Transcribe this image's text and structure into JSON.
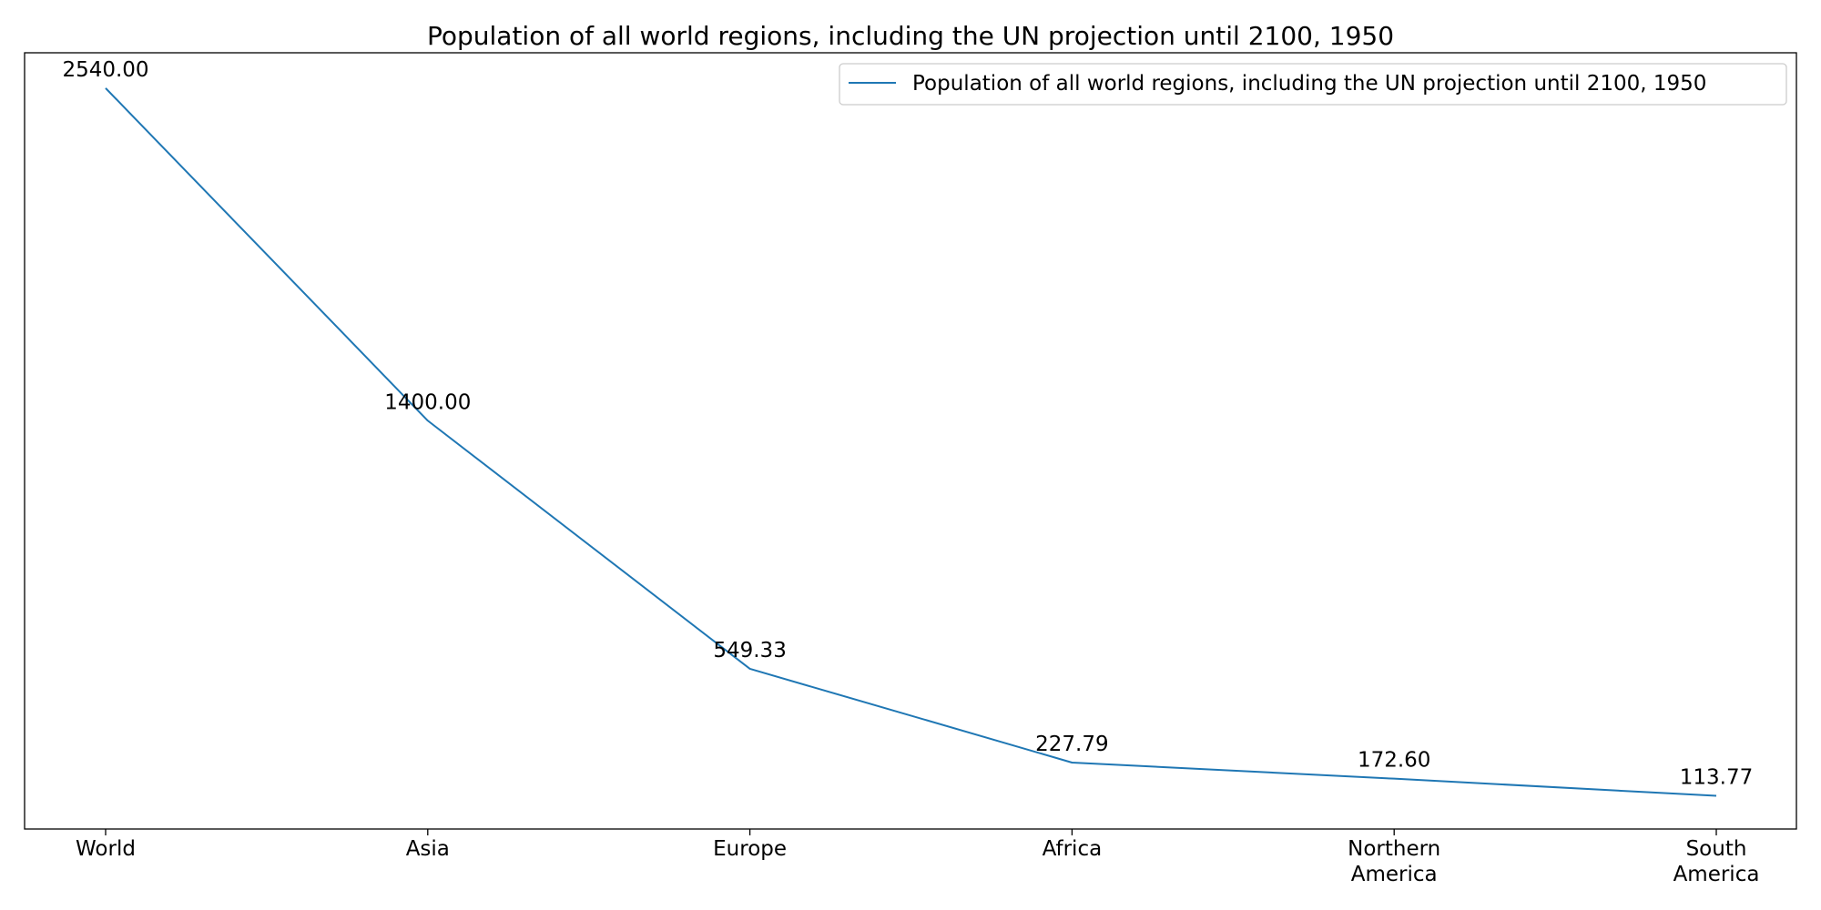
{
  "chart_data": {
    "type": "line",
    "title": "Population of all world regions, including the UN projection until 2100, 1950",
    "xlabel": "",
    "ylabel": "",
    "categories": [
      "World",
      "Asia",
      "Europe",
      "Africa",
      "Northern America",
      "South America"
    ],
    "category_lines": [
      [
        "World"
      ],
      [
        "Asia"
      ],
      [
        "Europe"
      ],
      [
        "Africa"
      ],
      [
        "Northern",
        "America"
      ],
      [
        "South",
        "America"
      ]
    ],
    "series": [
      {
        "name": "Population of all world regions, including the UN projection until 2100, 1950",
        "values": [
          2540.0,
          1400.0,
          549.33,
          227.79,
          172.6,
          113.77
        ],
        "labels": [
          "2540.00",
          "1400.00",
          "549.33",
          "227.79",
          "172.60",
          "113.77"
        ],
        "color": "#1f77b4"
      }
    ],
    "ylim": [
      0,
      2661.3
    ],
    "grid": false,
    "y_ticks_visible": false,
    "legend_position": "upper-right"
  }
}
